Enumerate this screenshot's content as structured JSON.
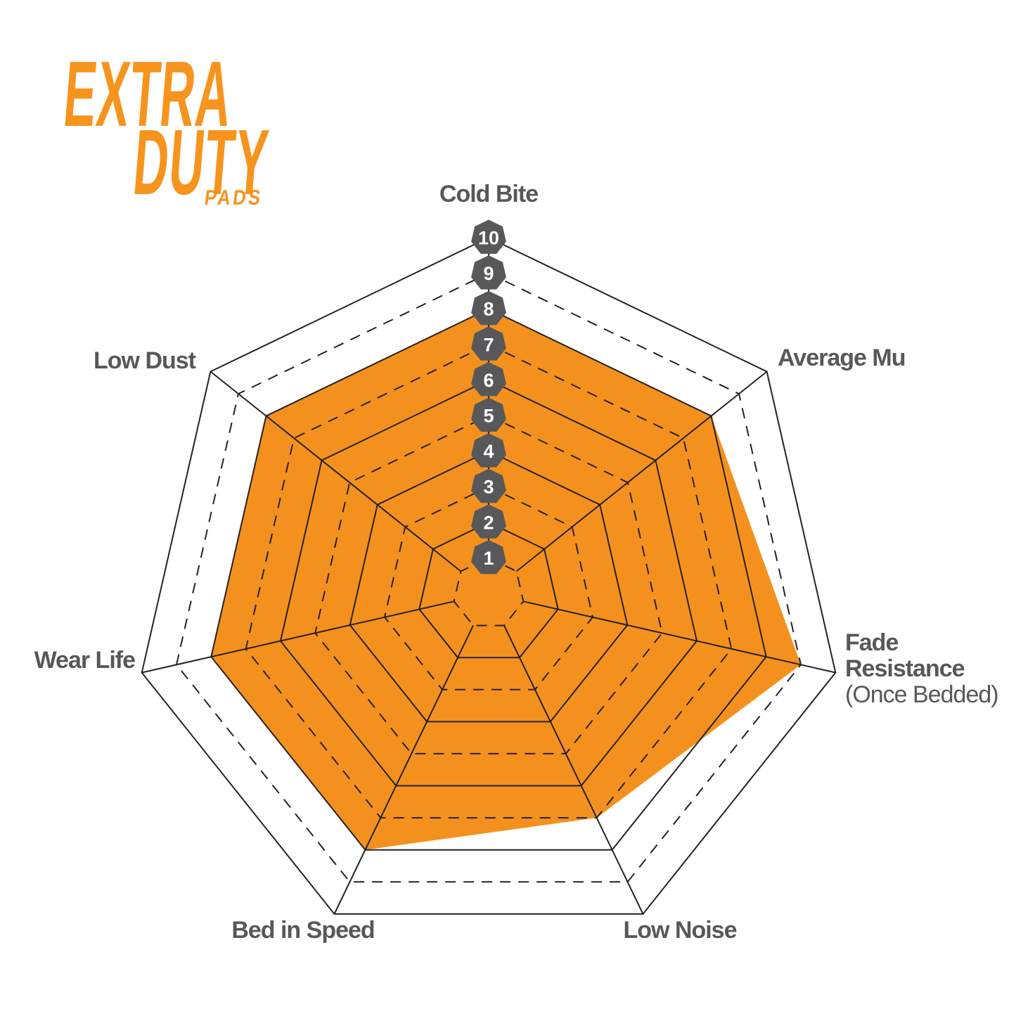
{
  "logo": {
    "extra": "EXTRA",
    "duty": "DUTY",
    "pads": "PADS"
  },
  "colors": {
    "orange": "#F4911E",
    "badge_gray": "#58585A",
    "label_gray": "#57585A",
    "line": "#262223",
    "background": "#FFFFFF",
    "badge_text": "#FFFFFF"
  },
  "chart_data": {
    "type": "radar",
    "title": "Extra Duty Pads performance radar",
    "categories": [
      "Cold Bite",
      "Average Mu",
      "Fade Resistance (Once Bedded)",
      "Low Noise",
      "Bed in Speed",
      "Wear Life",
      "Low Dust"
    ],
    "series": [
      {
        "name": "Extra Duty Pads",
        "values": [
          8,
          8,
          9,
          7,
          8,
          8,
          8
        ],
        "fill": "#F4911E"
      }
    ],
    "axes": [
      {
        "label": "Cold Bite",
        "value": 8
      },
      {
        "label": "Average Mu",
        "value": 8
      },
      {
        "label_lines": [
          "Fade",
          "Resistance"
        ],
        "sublabel": "(Once Bedded)",
        "value": 9
      },
      {
        "label": "Low Noise",
        "value": 7
      },
      {
        "label": "Bed in Speed",
        "value": 8
      },
      {
        "label": "Wear Life",
        "value": 8
      },
      {
        "label": "Low Dust",
        "value": 8
      }
    ],
    "scale": {
      "min": 1,
      "max": 10,
      "tick_labels": [
        "1",
        "2",
        "3",
        "4",
        "5",
        "6",
        "7",
        "8",
        "9",
        "10"
      ],
      "solid_rings": [
        2,
        4,
        6,
        8,
        10
      ],
      "dashed_rings": [
        1,
        3,
        5,
        7,
        9
      ],
      "grid": true,
      "legend": "none"
    },
    "ylim": [
      0,
      10
    ]
  }
}
